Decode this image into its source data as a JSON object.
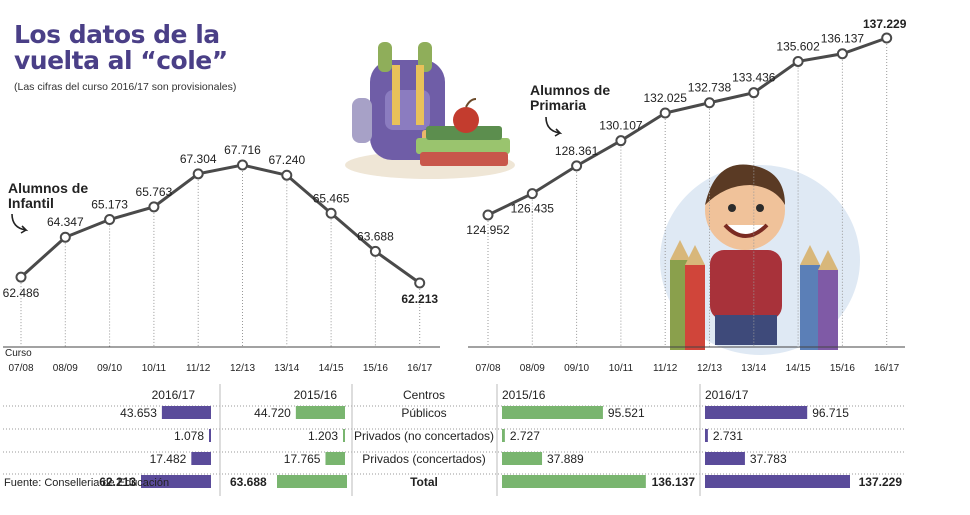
{
  "title": "Los datos de la vuelta al “cole”",
  "subtitle": "(Las cifras del curso 2016/17 son provisionales)",
  "source": "Fuente: Conselleria de Educación",
  "colors": {
    "purple": "#5a4b9a",
    "green": "#79b56f",
    "line": "#4a4a4a"
  },
  "chart_data": [
    {
      "type": "line",
      "series_label": "Alumnos de Infantil",
      "x_caption": "Curso",
      "categories": [
        "07/08",
        "08/09",
        "09/10",
        "10/11",
        "11/12",
        "12/13",
        "13/14",
        "14/15",
        "15/16",
        "16/17"
      ],
      "values": [
        62486,
        64347,
        65173,
        65763,
        67304,
        67716,
        67240,
        65465,
        63688,
        62213
      ],
      "labels": [
        "62.486",
        "64.347",
        "65.173",
        "65.763",
        "67.304",
        "67.716",
        "67.240",
        "65.465",
        "63.688",
        "62.213"
      ]
    },
    {
      "type": "line",
      "series_label": "Alumnos de Primaria",
      "categories": [
        "07/08",
        "08/09",
        "09/10",
        "10/11",
        "11/12",
        "12/13",
        "13/14",
        "14/15",
        "15/16",
        "16/17"
      ],
      "values": [
        124952,
        126435,
        128361,
        130107,
        132025,
        132738,
        133436,
        135602,
        136137,
        137229
      ],
      "labels": [
        "124.952",
        "126.435",
        "128.361",
        "130.107",
        "132.025",
        "132.738",
        "133.436",
        "135.602",
        "136.137",
        "137.229"
      ]
    },
    {
      "type": "table",
      "center_header": "Centros",
      "rows": [
        "Públicos",
        "Privados (no concertados)",
        "Privados (concertados)",
        "Total"
      ],
      "infantil": {
        "y2016": {
          "header": "2016/17",
          "values": [
            43653,
            1078,
            17482,
            62213
          ],
          "labels": [
            "43.653",
            "1.078",
            "17.482",
            "62.213"
          ]
        },
        "y2015": {
          "header": "2015/16",
          "values": [
            44720,
            1203,
            17765,
            63688
          ],
          "labels": [
            "44.720",
            "1.203",
            "17.765",
            "63.688"
          ]
        }
      },
      "primaria": {
        "y2015": {
          "header": "2015/16",
          "values": [
            95521,
            2727,
            37889,
            136137
          ],
          "labels": [
            "95.521",
            "2.727",
            "37.889",
            "136.137"
          ]
        },
        "y2016": {
          "header": "2016/17",
          "values": [
            96715,
            2731,
            37783,
            137229
          ],
          "labels": [
            "96.715",
            "2.731",
            "37.783",
            "137.229"
          ]
        }
      }
    }
  ]
}
